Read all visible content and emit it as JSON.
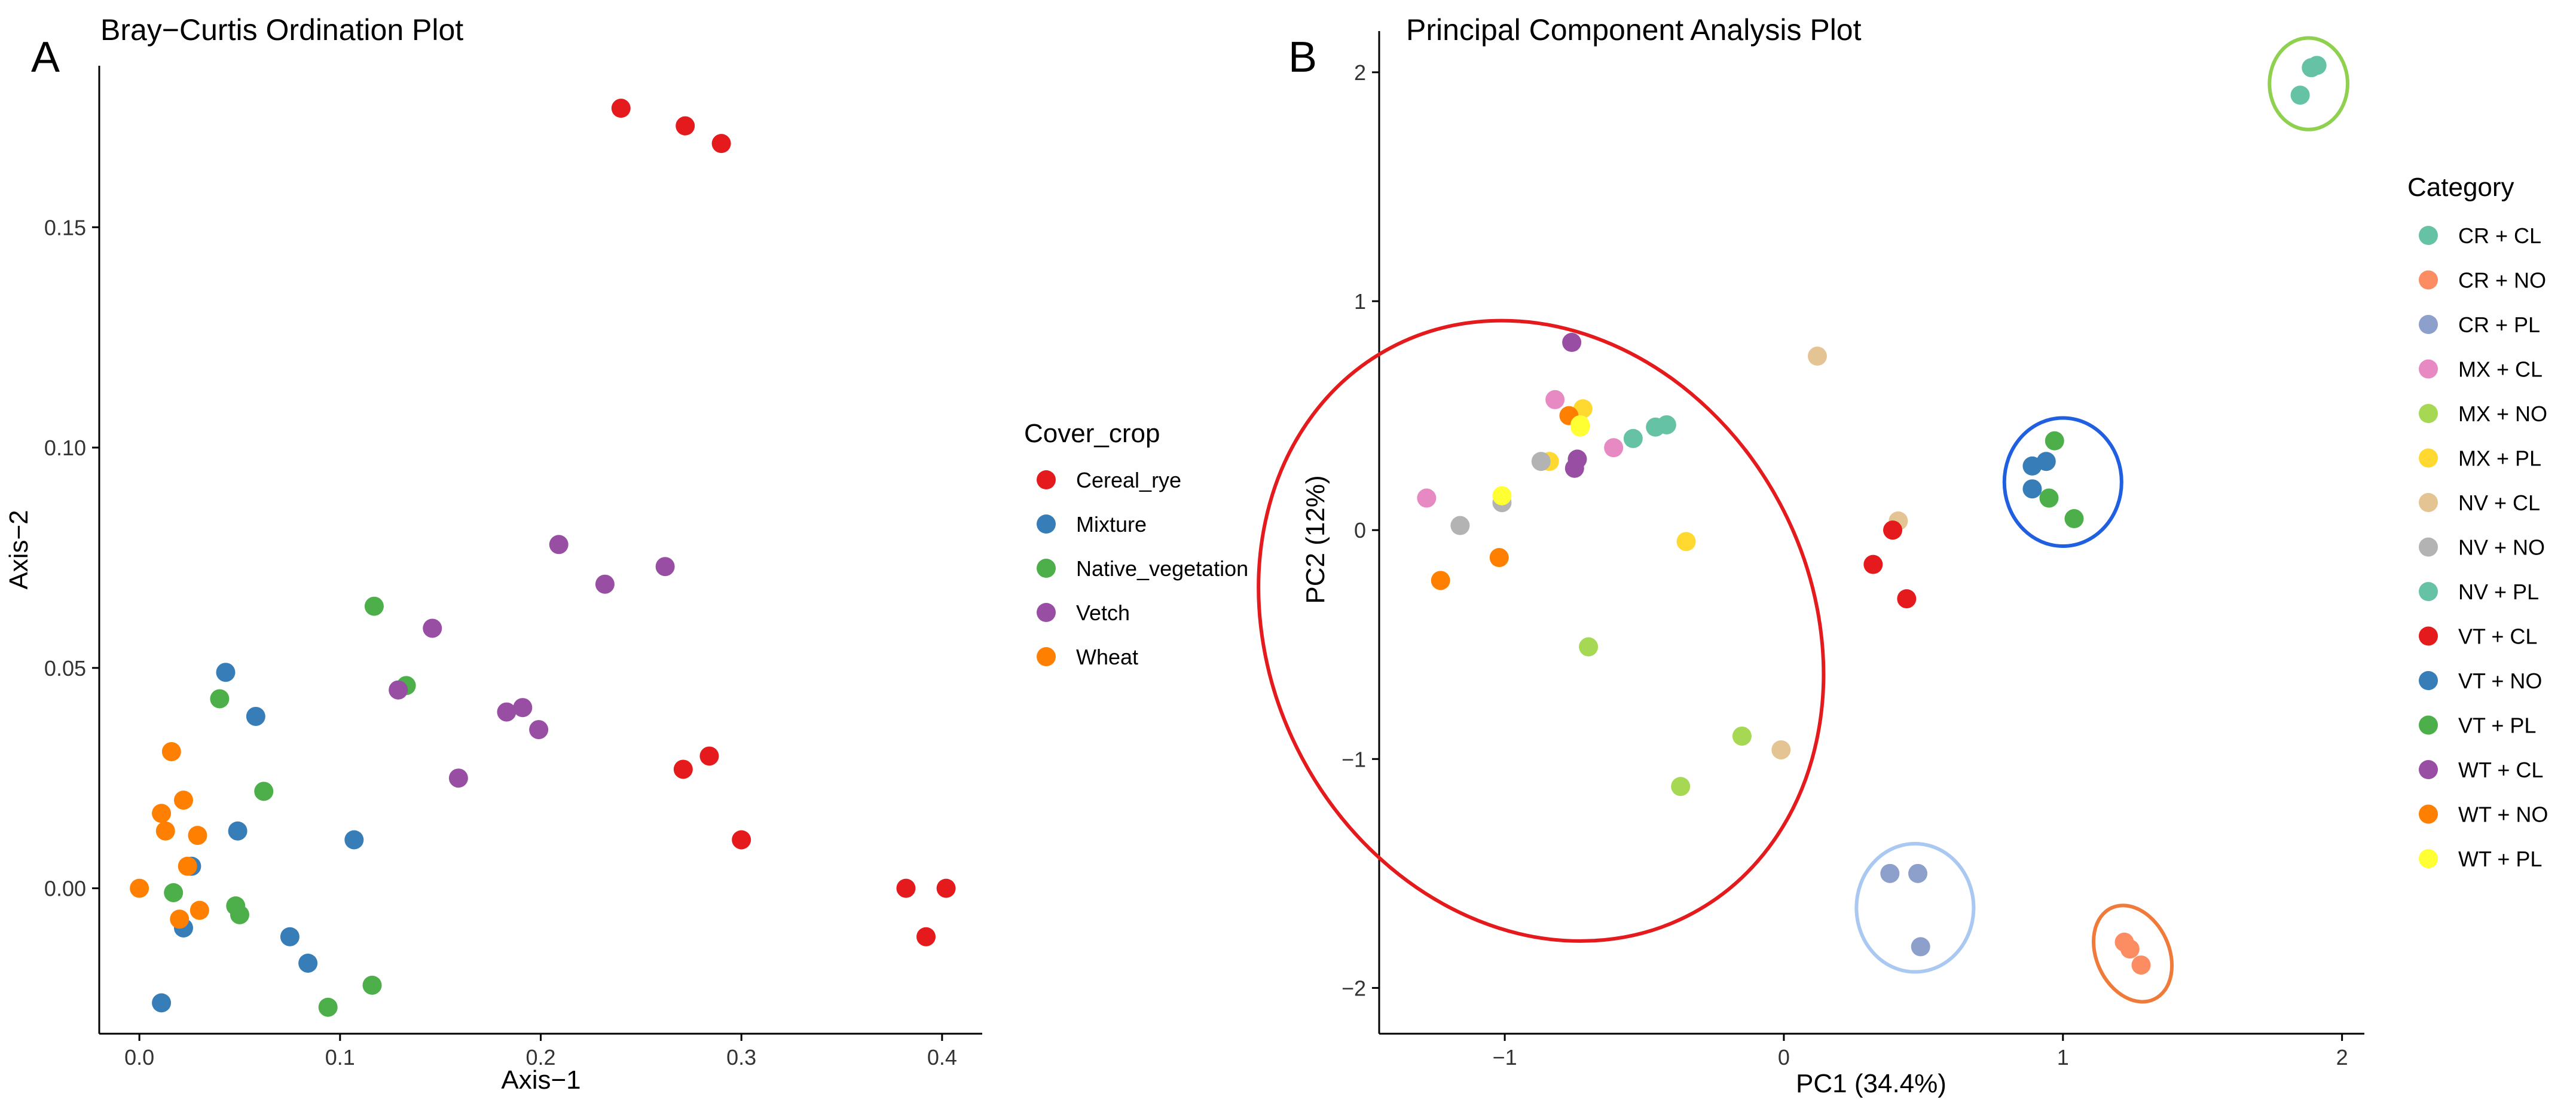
{
  "figure": {
    "panel_a_letter": "A",
    "panel_b_letter": "B"
  },
  "chart_data": [
    {
      "type": "scatter",
      "title": "Bray−Curtis Ordination Plot",
      "xlabel": "Axis−1",
      "ylabel": "Axis−2",
      "xlim": [
        -0.02,
        0.42
      ],
      "ylim": [
        -0.033,
        0.188
      ],
      "xticks": [
        0.0,
        0.1,
        0.2,
        0.3,
        0.4
      ],
      "xtick_labels": [
        "0.0",
        "0.1",
        "0.2",
        "0.3",
        "0.4"
      ],
      "yticks": [
        0.0,
        0.05,
        0.1,
        0.15
      ],
      "ytick_labels": [
        "0.00",
        "0.05",
        "0.10",
        "0.15"
      ],
      "grid": false,
      "legend": {
        "title": "Cover_crop",
        "position": "right"
      },
      "series": [
        {
          "name": "Cereal_rye",
          "color": "#E41A1C",
          "points": [
            [
              0.24,
              0.177
            ],
            [
              0.272,
              0.173
            ],
            [
              0.29,
              0.169
            ],
            [
              0.271,
              0.027
            ],
            [
              0.284,
              0.03
            ],
            [
              0.3,
              0.011
            ],
            [
              0.382,
              0.0
            ],
            [
              0.402,
              0.0
            ],
            [
              0.392,
              -0.011
            ]
          ]
        },
        {
          "name": "Mixture",
          "color": "#377EB8",
          "points": [
            [
              0.043,
              0.049
            ],
            [
              0.058,
              0.039
            ],
            [
              0.049,
              0.013
            ],
            [
              0.107,
              0.011
            ],
            [
              0.026,
              0.005
            ],
            [
              0.022,
              -0.009
            ],
            [
              0.075,
              -0.011
            ],
            [
              0.084,
              -0.017
            ],
            [
              0.011,
              -0.026
            ]
          ]
        },
        {
          "name": "Native_vegetation",
          "color": "#4DAF4A",
          "points": [
            [
              0.117,
              0.064
            ],
            [
              0.133,
              0.046
            ],
            [
              0.04,
              0.043
            ],
            [
              0.062,
              0.022
            ],
            [
              0.017,
              -0.001
            ],
            [
              0.048,
              -0.004
            ],
            [
              0.05,
              -0.006
            ],
            [
              0.116,
              -0.022
            ],
            [
              0.094,
              -0.027
            ]
          ]
        },
        {
          "name": "Vetch",
          "color": "#984EA3",
          "points": [
            [
              0.209,
              0.078
            ],
            [
              0.232,
              0.069
            ],
            [
              0.262,
              0.073
            ],
            [
              0.146,
              0.059
            ],
            [
              0.129,
              0.045
            ],
            [
              0.183,
              0.04
            ],
            [
              0.191,
              0.041
            ],
            [
              0.199,
              0.036
            ],
            [
              0.159,
              0.025
            ]
          ]
        },
        {
          "name": "Wheat",
          "color": "#FF7F00",
          "points": [
            [
              0.016,
              0.031
            ],
            [
              0.022,
              0.02
            ],
            [
              0.011,
              0.017
            ],
            [
              0.013,
              0.013
            ],
            [
              0.029,
              0.012
            ],
            [
              0.024,
              0.005
            ],
            [
              0.03,
              -0.005
            ],
            [
              0.02,
              -0.007
            ],
            [
              0.0,
              0.0
            ]
          ]
        }
      ]
    },
    {
      "type": "scatter",
      "title": "Principal Component Analysis Plot",
      "xlabel": "PC1 (34.4%)",
      "ylabel": "PC2 (12%)",
      "xlim": [
        -1.45,
        2.08
      ],
      "ylim": [
        -2.2,
        2.18
      ],
      "xticks": [
        -1,
        0,
        1,
        2
      ],
      "xtick_labels": [
        "−1",
        "0",
        "1",
        "2"
      ],
      "yticks": [
        -2,
        -1,
        0,
        1,
        2
      ],
      "ytick_labels": [
        "−2",
        "−1",
        "0",
        "1",
        "2"
      ],
      "grid": false,
      "legend": {
        "title": "Category",
        "position": "right"
      },
      "series": [
        {
          "name": "CR + CL",
          "color": "#66C2A5",
          "points": [
            [
              1.89,
              2.02
            ],
            [
              1.91,
              2.03
            ],
            [
              1.85,
              1.9
            ]
          ]
        },
        {
          "name": "CR + NO",
          "color": "#FC8D62",
          "points": [
            [
              1.22,
              -1.8
            ],
            [
              1.24,
              -1.83
            ],
            [
              1.28,
              -1.9
            ]
          ]
        },
        {
          "name": "CR + PL",
          "color": "#8DA0CB",
          "points": [
            [
              0.38,
              -1.5
            ],
            [
              0.48,
              -1.5
            ],
            [
              0.49,
              -1.82
            ]
          ]
        },
        {
          "name": "MX + CL",
          "color": "#E78AC3",
          "points": [
            [
              -1.28,
              0.14
            ],
            [
              -0.82,
              0.57
            ],
            [
              -0.61,
              0.36
            ]
          ]
        },
        {
          "name": "MX + NO",
          "color": "#A6D854",
          "points": [
            [
              -0.7,
              -0.51
            ],
            [
              -0.15,
              -0.9
            ],
            [
              -0.37,
              -1.12
            ]
          ]
        },
        {
          "name": "MX + PL",
          "color": "#FFD92F",
          "points": [
            [
              -0.72,
              0.53
            ],
            [
              -0.84,
              0.3
            ],
            [
              -0.35,
              -0.05
            ]
          ]
        },
        {
          "name": "NV + CL",
          "color": "#E5C494",
          "points": [
            [
              0.12,
              0.76
            ],
            [
              0.41,
              0.04
            ],
            [
              -0.01,
              -0.96
            ]
          ]
        },
        {
          "name": "NV + NO",
          "color": "#B3B3B3",
          "points": [
            [
              -1.16,
              0.02
            ],
            [
              -1.01,
              0.12
            ],
            [
              -0.87,
              0.3
            ]
          ]
        },
        {
          "name": "NV + PL",
          "color": "#66C2A5",
          "points": [
            [
              -0.54,
              0.4
            ],
            [
              -0.46,
              0.45
            ],
            [
              -0.42,
              0.46
            ]
          ]
        },
        {
          "name": "VT + CL",
          "color": "#E41A1C",
          "points": [
            [
              0.32,
              -0.15
            ],
            [
              0.39,
              0.0
            ],
            [
              0.44,
              -0.3
            ]
          ]
        },
        {
          "name": "VT + NO",
          "color": "#377EB8",
          "points": [
            [
              0.89,
              0.28
            ],
            [
              0.94,
              0.3
            ],
            [
              0.89,
              0.18
            ]
          ]
        },
        {
          "name": "VT + PL",
          "color": "#4DAF4A",
          "points": [
            [
              0.97,
              0.39
            ],
            [
              0.95,
              0.14
            ],
            [
              1.04,
              0.05
            ]
          ]
        },
        {
          "name": "WT + CL",
          "color": "#984EA3",
          "points": [
            [
              -0.76,
              0.82
            ],
            [
              -0.75,
              0.27
            ],
            [
              -0.74,
              0.31
            ]
          ]
        },
        {
          "name": "WT + NO",
          "color": "#FF7F00",
          "points": [
            [
              -1.23,
              -0.22
            ],
            [
              -1.02,
              -0.12
            ],
            [
              -0.77,
              0.5
            ]
          ]
        },
        {
          "name": "WT + PL",
          "color": "#FFFF33",
          "points": [
            [
              -1.01,
              0.15
            ],
            [
              -0.73,
              0.46
            ],
            [
              -0.73,
              0.45
            ]
          ]
        }
      ],
      "ellipses": [
        {
          "group": "WT + NO / MX + NO cluster",
          "color": "#E41A1C",
          "center": [
            -0.87,
            -0.44
          ],
          "radii": [
            0.97,
            1.4
          ],
          "angle_deg": -28
        },
        {
          "group": "VT cluster",
          "color": "#1F5FE0",
          "center": [
            1.0,
            0.21
          ],
          "radii": [
            0.21,
            0.28
          ],
          "angle_deg": 0
        },
        {
          "group": "CR + CL",
          "color": "#8FD14F",
          "center": [
            1.88,
            1.95
          ],
          "radii": [
            0.14,
            0.2
          ],
          "angle_deg": 0
        },
        {
          "group": "CR + PL",
          "color": "#A9C8F2",
          "center": [
            0.47,
            -1.65
          ],
          "radii": [
            0.21,
            0.28
          ],
          "angle_deg": 0
        },
        {
          "group": "CR + NO",
          "color": "#F07A3A",
          "center": [
            1.25,
            -1.85
          ],
          "radii": [
            0.13,
            0.22
          ],
          "angle_deg": -25
        }
      ]
    }
  ]
}
